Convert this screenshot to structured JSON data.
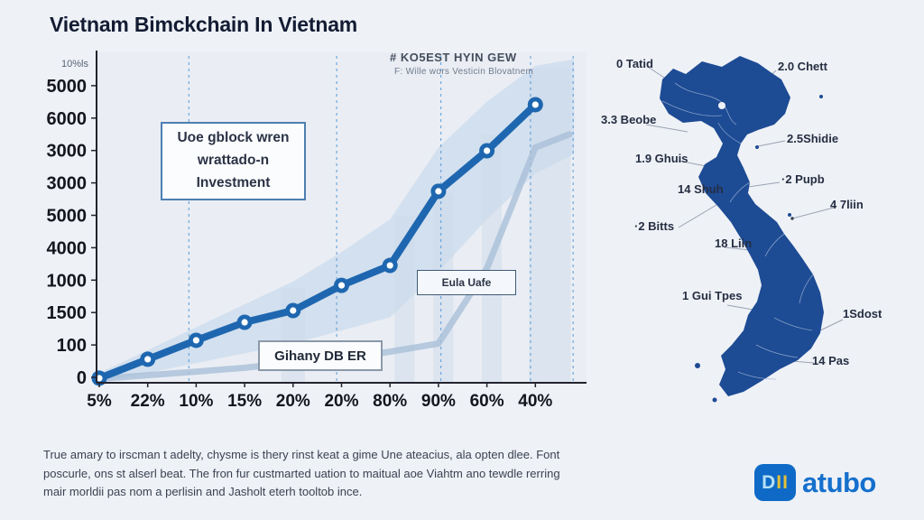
{
  "title": "Vietnam Bimckchain In Vietnam",
  "chart_data": {
    "type": "line",
    "title": "Vietnam Bimckchain In Vietnam",
    "xlabel": "",
    "ylabel": "",
    "categories": [
      "5%",
      "22%",
      "10%",
      "15%",
      "20%",
      "20%",
      "80%",
      "90%",
      "60%",
      "40%"
    ],
    "y_tick_labels_bottom_to_top": [
      "0",
      "100",
      "1500",
      "1000",
      "4000",
      "5000",
      "3000",
      "3000",
      "6000",
      "5000"
    ],
    "y_axis_note": "10%ls",
    "value_units": "percent-of-plot-height (axis tick labels are decorative/garbled in source image)",
    "series": [
      {
        "name": "main-trend-line",
        "values": [
          1.4,
          7.2,
          13,
          18.5,
          22.1,
          29.8,
          35.9,
          58.6,
          71,
          85.1
        ]
      },
      {
        "name": "secondary-gray-line",
        "x": [
          0,
          1,
          2,
          3,
          4,
          5,
          6,
          7,
          8,
          9,
          9.7
        ],
        "values": [
          1.2,
          2.3,
          3.4,
          4.6,
          6.2,
          7.5,
          9.5,
          12,
          35,
          72,
          76
        ]
      }
    ],
    "band": {
      "x": [
        0,
        1,
        2,
        3,
        4,
        5,
        6,
        7,
        8,
        9,
        9.8
      ],
      "upper": [
        3,
        10,
        17,
        24,
        31,
        40,
        50,
        72,
        86,
        97,
        99
      ],
      "lower": [
        0.5,
        3,
        6,
        9,
        12,
        16,
        20,
        34,
        50,
        64,
        70
      ]
    },
    "bars": {
      "x": [
        4.0,
        6.3,
        7.1,
        8.1,
        9.3
      ],
      "heights": [
        29,
        51,
        58,
        76,
        96
      ],
      "widths": [
        26,
        22,
        22,
        22,
        46
      ]
    },
    "dashed_x": [
      1.85,
      4.9,
      7.05,
      8.9,
      9.78
    ],
    "grid": "off",
    "legend": "none",
    "colors": {
      "main": "#1e67b0",
      "secondary": "#a9bfd8",
      "band": "#c9daec",
      "bars": "#ccd9ea",
      "dashed": "#5b9bd5"
    }
  },
  "chart": {
    "annotations": {
      "box1": {
        "lines": [
          "Uoe gblock wren",
          "wrattado-n",
          "Investment"
        ]
      },
      "box2": {
        "label": "Eula Uafe"
      },
      "box3": {
        "label": "Gihany DB ER"
      },
      "top_note": {
        "line1": "# KO5EST HYIN GEW",
        "line2": "F: Wille wors Vesticin Blovatnem"
      }
    }
  },
  "map": {
    "region_color": "#1d4b94",
    "labels": [
      {
        "text": "0 Tatid"
      },
      {
        "text": "2.0 Chett"
      },
      {
        "text": "3.3 Beobe"
      },
      {
        "text": "2.5Shidie"
      },
      {
        "text": "1.9 Ghuis"
      },
      {
        "text": "·2 Pupb"
      },
      {
        "text": "14 Shuh"
      },
      {
        "text": "4 7liin"
      },
      {
        "text": "·2 Bitts"
      },
      {
        "text": "18 Liin"
      },
      {
        "text": "1 Gui Tpes"
      },
      {
        "text": "1Sdost"
      },
      {
        "text": "14 Pas"
      }
    ]
  },
  "footer": {
    "lines": [
      "True amary to irscman t adelty, chysme is thery rinst keat a gime Une ateacius, ala opten dlee. Font",
      "poscurle, ons st alserl beat. The fron fur custmarted uation to maitual aoe Viahtm ano tewdle rerring",
      "mair morldii pas nom a perlisin and Jasholt eterh tooltob ince."
    ]
  },
  "logo": {
    "badge_d": "D",
    "badge_ii": "II",
    "name": "atubo"
  }
}
